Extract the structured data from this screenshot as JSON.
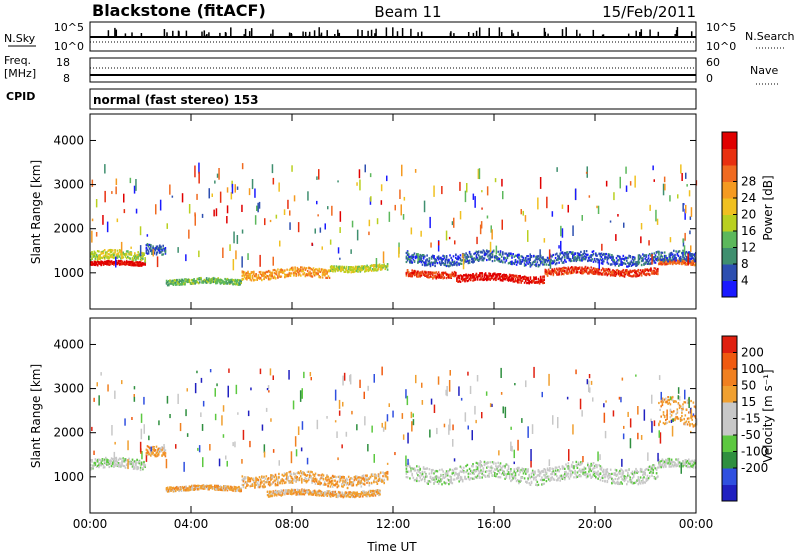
{
  "header": {
    "station": "Blackstone (fitACF)",
    "beam": "Beam 11",
    "date": "15/Feb/2011"
  },
  "status_panels": {
    "nsky_label": "N.Sky",
    "nsky_ticks": [
      "10^5",
      "10^0"
    ],
    "nsearch_label": "N.Search",
    "nsearch_ticks": [
      "10^5",
      "10^0"
    ],
    "freq_label": "Freq.",
    "freq_unit": "[MHz]",
    "freq_ticks": [
      "18",
      "8"
    ],
    "nave_label": "Nave",
    "nave_ticks": [
      "60",
      "0"
    ],
    "cpid_label": "CPID",
    "cpid_value": "normal (fast stereo) 153"
  },
  "chart_data": [
    {
      "type": "heatmap",
      "name": "power",
      "ylabel": "Slant Range [km]",
      "xlabel": "Time UT",
      "ylim": [
        180,
        4600
      ],
      "xlim": [
        0,
        24
      ],
      "yticks": [
        "1000",
        "2000",
        "3000",
        "4000"
      ],
      "xticks": [
        "00:00",
        "04:00",
        "08:00",
        "12:00",
        "16:00",
        "20:00",
        "00:00"
      ],
      "colorbar": {
        "label": "Power [dB]",
        "ticks": [
          "4",
          "8",
          "12",
          "16",
          "20",
          "24",
          "28"
        ],
        "colors": [
          "#1a1aff",
          "#2d4fb0",
          "#3f8f6f",
          "#5cb85c",
          "#b9d020",
          "#f0c020",
          "#f59a20",
          "#f06a20",
          "#e83010",
          "#e00000"
        ]
      },
      "bands": [
        {
          "t0": 0.0,
          "t1": 2.2,
          "r": 1230,
          "w": 90,
          "level": 9
        },
        {
          "t0": 0.0,
          "t1": 2.2,
          "r": 1400,
          "w": 200,
          "level": 4
        },
        {
          "t0": 2.2,
          "t1": 3.0,
          "r": 1600,
          "w": 220,
          "level": 1
        },
        {
          "t0": 3.0,
          "t1": 6.0,
          "r": 820,
          "w": 120,
          "level": 3
        },
        {
          "t0": 6.0,
          "t1": 9.5,
          "r": 1000,
          "w": 200,
          "level": 6
        },
        {
          "t0": 9.5,
          "t1": 11.8,
          "r": 1130,
          "w": 130,
          "level": 4
        },
        {
          "t0": 12.5,
          "t1": 14.5,
          "r": 1000,
          "w": 140,
          "level": 8
        },
        {
          "t0": 14.5,
          "t1": 18.0,
          "r": 900,
          "w": 160,
          "level": 9
        },
        {
          "t0": 18.0,
          "t1": 22.5,
          "r": 1050,
          "w": 150,
          "level": 8
        },
        {
          "t0": 22.5,
          "t1": 24.0,
          "r": 1250,
          "w": 120,
          "level": 7
        },
        {
          "t0": 12.5,
          "t1": 24.0,
          "r": 1350,
          "w": 250,
          "level": 1
        }
      ]
    },
    {
      "type": "heatmap",
      "name": "velocity",
      "ylabel": "Slant Range [km]",
      "xlabel": "Time UT",
      "ylim": [
        180,
        4600
      ],
      "xlim": [
        0,
        24
      ],
      "yticks": [
        "1000",
        "2000",
        "3000",
        "4000"
      ],
      "xticks": [
        "00:00",
        "04:00",
        "08:00",
        "12:00",
        "16:00",
        "20:00",
        "00:00"
      ],
      "colorbar": {
        "label": "Velocity [m s⁻¹]",
        "ticks": [
          "200",
          "100",
          "50",
          "15",
          "-15",
          "-50",
          "-100",
          "-200"
        ],
        "colors": [
          "#2020c0",
          "#3050e0",
          "#2f8f3f",
          "#5cc840",
          "#c8c8c8",
          "#c8c8c8",
          "#f0a030",
          "#f08020",
          "#f05a10",
          "#e02010"
        ]
      },
      "bands": [
        {
          "t0": 0.0,
          "t1": 2.2,
          "r": 1300,
          "w": 220,
          "level": 4
        },
        {
          "t0": 2.2,
          "t1": 3.0,
          "r": 1650,
          "w": 220,
          "level": 6
        },
        {
          "t0": 3.0,
          "t1": 6.0,
          "r": 760,
          "w": 100,
          "level": 6
        },
        {
          "t0": 6.0,
          "t1": 11.8,
          "r": 960,
          "w": 260,
          "level": 6
        },
        {
          "t0": 7.0,
          "t1": 11.5,
          "r": 650,
          "w": 120,
          "level": 6
        },
        {
          "t0": 12.5,
          "t1": 22.5,
          "r": 1100,
          "w": 360,
          "level": 4
        },
        {
          "t0": 22.5,
          "t1": 24.0,
          "r": 1300,
          "w": 180,
          "level": 4
        },
        {
          "t0": 22.5,
          "t1": 24.0,
          "r": 2400,
          "w": 600,
          "level": 6
        }
      ]
    }
  ]
}
